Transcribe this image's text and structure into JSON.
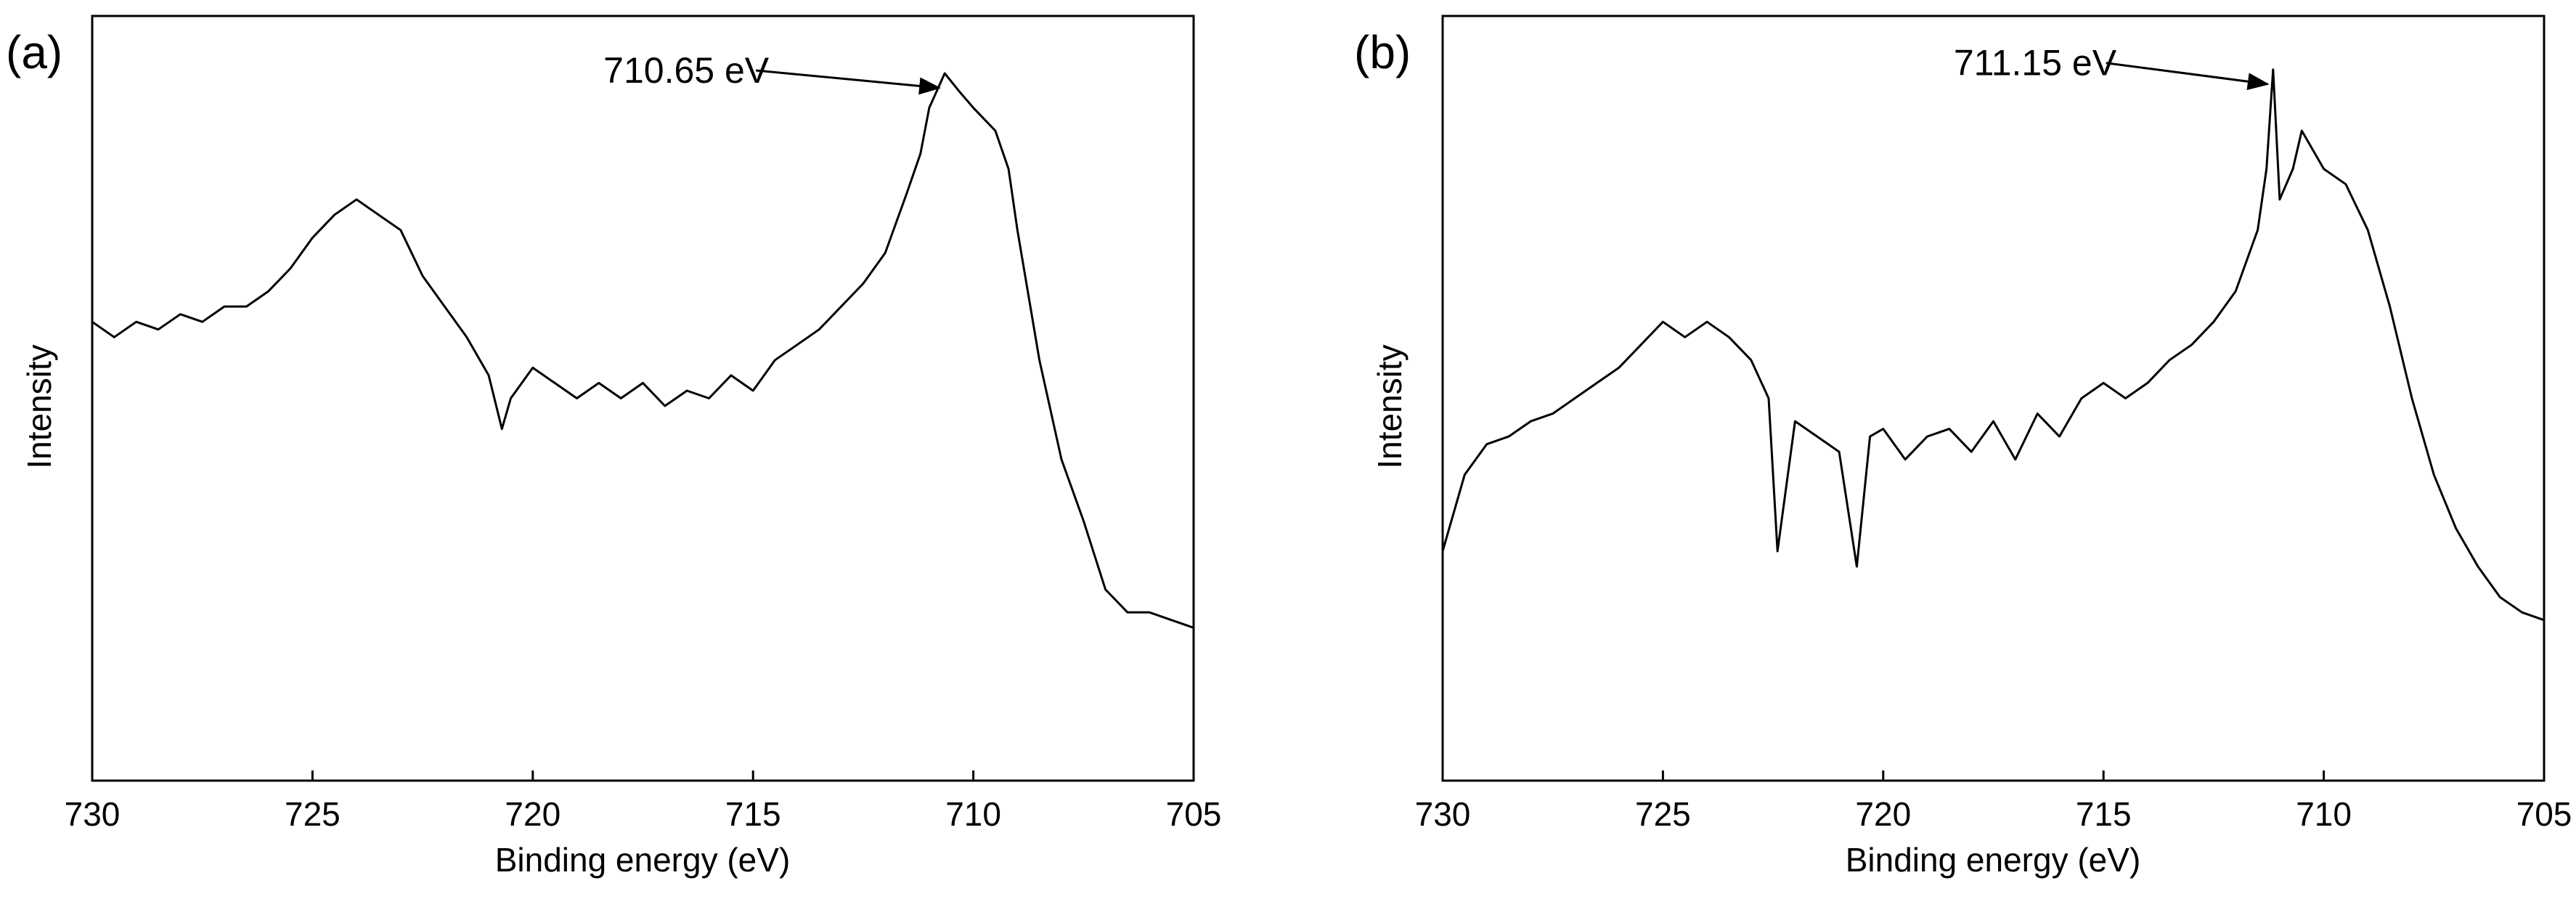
{
  "chart_data": [
    {
      "panel_label": "(a)",
      "type": "line",
      "xlabel": "Binding energy (eV)",
      "ylabel": "Intensity",
      "xlim": [
        730,
        705
      ],
      "xticks": [
        730,
        725,
        720,
        715,
        710,
        705
      ],
      "ylim": [
        0,
        1
      ],
      "y_ticks_shown": false,
      "grid": false,
      "annotation": {
        "text": "710.65 eV",
        "x": 710.65,
        "y": 0.925
      },
      "series": [
        {
          "x": [
            730,
            729.5,
            729,
            728.5,
            728,
            727.5,
            727,
            726.5,
            726,
            725.5,
            725,
            724.5,
            724,
            723.5,
            723,
            722.5,
            722,
            721.5,
            721,
            720.7,
            720.5,
            720,
            719.5,
            719,
            718.5,
            718,
            717.5,
            717,
            716.5,
            716,
            715.5,
            715,
            714.5,
            714,
            713.5,
            713,
            712.5,
            712,
            711.5,
            711.2,
            711,
            710.65,
            710.3,
            710,
            709.5,
            709.2,
            709,
            708.5,
            708,
            707.5,
            707,
            706.5,
            706,
            705.5,
            705
          ],
          "y": [
            0.6,
            0.58,
            0.6,
            0.59,
            0.61,
            0.6,
            0.62,
            0.62,
            0.64,
            0.67,
            0.71,
            0.74,
            0.76,
            0.74,
            0.72,
            0.66,
            0.62,
            0.58,
            0.53,
            0.46,
            0.5,
            0.54,
            0.52,
            0.5,
            0.52,
            0.5,
            0.52,
            0.49,
            0.51,
            0.5,
            0.53,
            0.51,
            0.55,
            0.57,
            0.59,
            0.62,
            0.65,
            0.69,
            0.77,
            0.82,
            0.88,
            0.925,
            0.9,
            0.88,
            0.85,
            0.8,
            0.72,
            0.55,
            0.42,
            0.34,
            0.25,
            0.22,
            0.22,
            0.21,
            0.2
          ]
        }
      ]
    },
    {
      "panel_label": "(b)",
      "type": "line",
      "xlabel": "Binding energy (eV)",
      "ylabel": "Intensity",
      "xlim": [
        730,
        705
      ],
      "xticks": [
        730,
        725,
        720,
        715,
        710,
        705
      ],
      "ylim": [
        0,
        1
      ],
      "y_ticks_shown": false,
      "grid": false,
      "annotation": {
        "text": "711.15 eV",
        "x": 711.15,
        "y": 0.93
      },
      "series": [
        {
          "x": [
            730,
            729.5,
            729,
            728.5,
            728,
            727.5,
            727,
            726.5,
            726,
            725.5,
            725,
            724.5,
            724,
            723.5,
            723,
            722.6,
            722.4,
            722,
            721.5,
            721,
            720.6,
            720.3,
            720,
            719.5,
            719,
            718.5,
            718,
            717.5,
            717,
            716.5,
            716,
            715.5,
            715,
            714.5,
            714,
            713.5,
            713,
            712.5,
            712,
            711.5,
            711.3,
            711.15,
            711,
            710.7,
            710.5,
            710,
            709.5,
            709,
            708.5,
            708,
            707.5,
            707,
            706.5,
            706,
            705.5,
            705
          ],
          "y": [
            0.3,
            0.4,
            0.44,
            0.45,
            0.47,
            0.48,
            0.5,
            0.52,
            0.54,
            0.57,
            0.6,
            0.58,
            0.6,
            0.58,
            0.55,
            0.5,
            0.3,
            0.47,
            0.45,
            0.43,
            0.28,
            0.45,
            0.46,
            0.42,
            0.45,
            0.46,
            0.43,
            0.47,
            0.42,
            0.48,
            0.45,
            0.5,
            0.52,
            0.5,
            0.52,
            0.55,
            0.57,
            0.6,
            0.64,
            0.72,
            0.8,
            0.93,
            0.76,
            0.8,
            0.85,
            0.8,
            0.78,
            0.72,
            0.62,
            0.5,
            0.4,
            0.33,
            0.28,
            0.24,
            0.22,
            0.21
          ]
        }
      ]
    }
  ]
}
